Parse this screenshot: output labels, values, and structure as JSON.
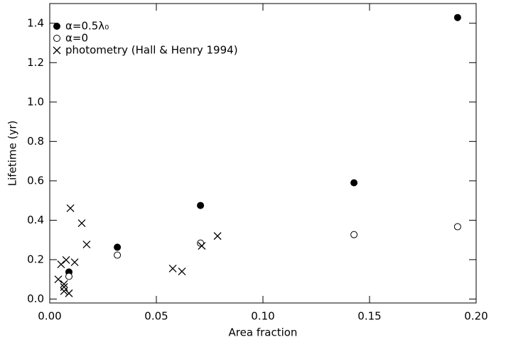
{
  "chart_data": {
    "type": "scatter",
    "xlabel": "Area fraction",
    "ylabel": "Lifetime (yr)",
    "xlim": [
      0,
      0.2
    ],
    "ylim": [
      -0.02,
      1.5
    ],
    "xticks": [
      {
        "value": 0,
        "label": "0.00"
      },
      {
        "value": 0.05,
        "label": "0.05"
      },
      {
        "value": 0.1,
        "label": "0.10"
      },
      {
        "value": 0.15,
        "label": "0.15"
      },
      {
        "value": 0.2,
        "label": "0.20"
      }
    ],
    "yticks": [
      {
        "value": 0,
        "label": "0.0"
      },
      0.2,
      0.4,
      0.6,
      0.8,
      {
        "value": 1,
        "label": "1.0"
      },
      1.2,
      1.4
    ],
    "legend": "upper left",
    "series": [
      {
        "name": "α=0.5λ₀",
        "marker": "filled-circle",
        "color": "#000000",
        "x": [
          0.009,
          0.0317,
          0.0707,
          0.1427,
          0.1913
        ],
        "values": [
          0.137,
          0.263,
          0.475,
          0.59,
          1.429
        ]
      },
      {
        "name": "α=0",
        "marker": "open-circle",
        "color": "#000000",
        "x": [
          0.009,
          0.0317,
          0.0707,
          0.1427,
          0.1913
        ],
        "values": [
          0.115,
          0.223,
          0.284,
          0.327,
          0.367
        ]
      },
      {
        "name": "photometry (Hall & Henry 1994)",
        "marker": "cross",
        "color": "#000000",
        "x": [
          0.0097,
          0.015,
          0.0173,
          0.0117,
          0.0077,
          0.0053,
          0.004,
          0.0067,
          0.0067,
          0.0067,
          0.009,
          0.0577,
          0.062,
          0.0713,
          0.0787
        ],
        "values": [
          0.461,
          0.385,
          0.277,
          0.187,
          0.198,
          0.176,
          0.1,
          0.076,
          0.061,
          0.04,
          0.029,
          0.155,
          0.14,
          0.27,
          0.32
        ]
      }
    ]
  }
}
